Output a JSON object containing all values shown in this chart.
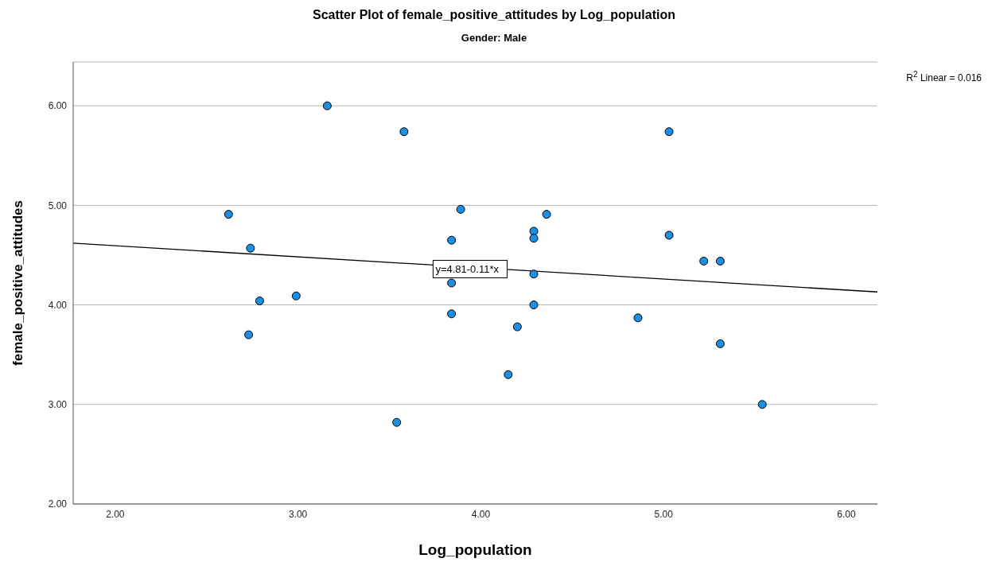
{
  "chart_data": {
    "type": "scatter",
    "title": "Scatter Plot of female_positive_attitudes by Log_population",
    "subtitle": "Gender: Male",
    "xlabel": "Log_population",
    "ylabel": "female_positive_attitudes",
    "series": [
      {
        "marker": "circle",
        "color": "#1a8fe3",
        "x": [
          2.62,
          2.73,
          2.74,
          2.79,
          2.99,
          3.16,
          3.54,
          3.58,
          3.84,
          3.84,
          3.84,
          3.89,
          4.15,
          4.2,
          4.29,
          4.29,
          4.29,
          4.29,
          4.36,
          4.86,
          5.03,
          5.03,
          5.22,
          5.31,
          5.31,
          5.54
        ],
        "values": [
          4.91,
          3.7,
          4.57,
          4.04,
          4.09,
          6.0,
          2.82,
          5.74,
          4.65,
          4.22,
          3.91,
          4.96,
          3.3,
          3.78,
          4.74,
          4.67,
          4.31,
          4.0,
          4.91,
          3.87,
          5.74,
          4.7,
          4.44,
          4.44,
          3.61,
          3.0
        ]
      },
      {
        "type": "line",
        "color": "#000000",
        "x": [
          1.77,
          6.17
        ],
        "values": [
          4.62,
          4.13
        ]
      }
    ],
    "xlim": [
      1.77,
      6.17
    ],
    "ylim": [
      2,
      6.44
    ],
    "xticks": [
      {
        "value": 2,
        "label": "2.00"
      },
      {
        "value": 3,
        "label": "3.00"
      },
      {
        "value": 4,
        "label": "4.00"
      },
      {
        "value": 5,
        "label": "5.00"
      },
      {
        "value": 6,
        "label": "6.00"
      }
    ],
    "yticks": [
      {
        "value": 2,
        "label": "2.00"
      },
      {
        "value": 3,
        "label": "3.00"
      },
      {
        "value": 4,
        "label": "4.00"
      },
      {
        "value": 5,
        "label": "5.00"
      },
      {
        "value": 6,
        "label": "6.00"
      }
    ],
    "grid": "y",
    "legend": false,
    "annotations": [
      {
        "text": "y=4.81-0.11*x",
        "x": 4.0,
        "y": 4.36
      },
      "R$^{2}$ Linear = 0.016"
    ]
  }
}
